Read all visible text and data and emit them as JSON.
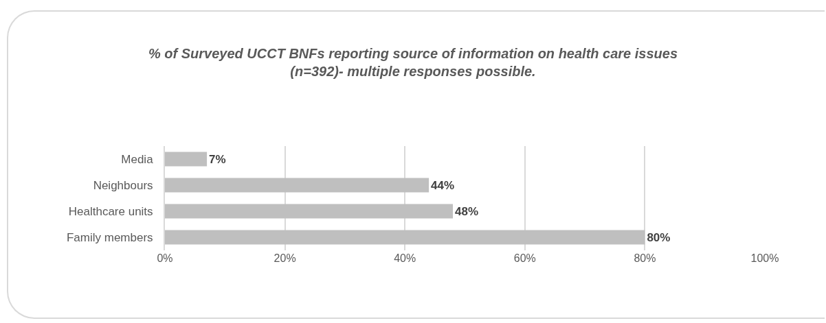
{
  "chart_data": {
    "type": "bar",
    "orientation": "horizontal",
    "title": "% of Surveyed UCCT BNFs reporting source of information on health care issues\n(n=392)- multiple responses possible.",
    "categories": [
      "Media",
      "Neighbours",
      "Healthcare units",
      "Family members"
    ],
    "values": [
      7,
      44,
      48,
      80
    ],
    "color": "#bfbfbf",
    "value_labels": [
      "7%",
      "44%",
      "48%",
      "80%"
    ],
    "xlim": [
      0,
      100
    ],
    "xticks": [
      {
        "value": 0,
        "label": "0%"
      },
      {
        "value": 20,
        "label": "20%"
      },
      {
        "value": 40,
        "label": "40%"
      },
      {
        "value": 60,
        "label": "60%"
      },
      {
        "value": 80,
        "label": "80%"
      },
      {
        "value": 100,
        "label": "100%"
      }
    ],
    "grid": "x"
  }
}
